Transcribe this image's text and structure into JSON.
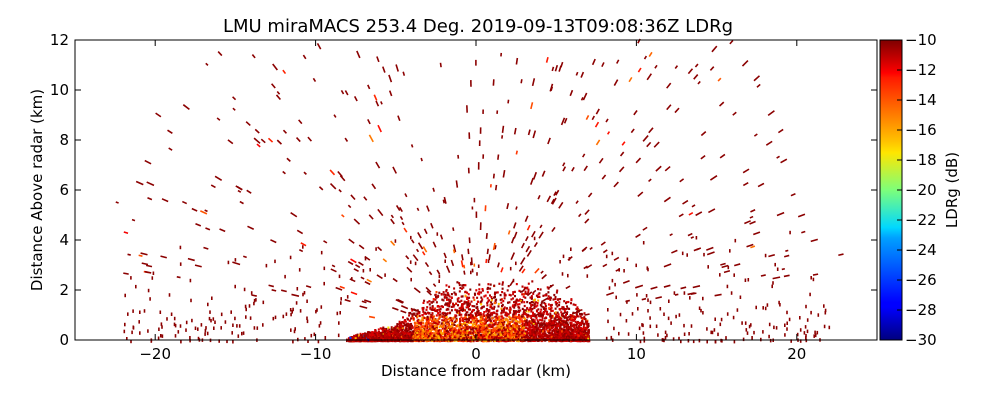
{
  "chart_data": {
    "type": "heatmap",
    "title": "LMU miraMACS 253.4 Deg. 2019-09-13T09:08:36Z  LDRg",
    "xlabel": "Distance from radar (km)",
    "ylabel": "Distance Above radar  (km)",
    "xlim": [
      -25,
      25
    ],
    "ylim": [
      0,
      12
    ],
    "x_ticks": [
      -20,
      -10,
      0,
      10,
      20
    ],
    "y_ticks": [
      0,
      2,
      4,
      6,
      8,
      10,
      12
    ],
    "x_tick_labels": [
      "−20",
      "−10",
      "0",
      "10",
      "20"
    ],
    "y_tick_labels": [
      "0",
      "2",
      "4",
      "6",
      "8",
      "10",
      "12"
    ],
    "grid": false,
    "colorbar": {
      "label": "LDRg (dB)",
      "min": -30,
      "max": -10,
      "ticks": [
        -10,
        -12,
        -14,
        -16,
        -18,
        -20,
        -22,
        -24,
        -26,
        -28,
        -30
      ],
      "tick_labels": [
        "−10",
        "−12",
        "−14",
        "−16",
        "−18",
        "−20",
        "−22",
        "−24",
        "−26",
        "−28",
        "−30"
      ],
      "colormap": "jet"
    },
    "field_description_values": {
      "dense_echo_region": {
        "x_range_km": [
          -8,
          7
        ],
        "top_km": 2.4
      },
      "sparse_noise_extent_km": {
        "x": [
          -23.5,
          23.5
        ],
        "y": [
          0,
          12
        ]
      },
      "typical_ldr_dB": -10,
      "core_ldr_dB": [
        -16,
        -13
      ]
    }
  },
  "colors": {
    "axes": "#000000",
    "background": "#ffffff",
    "dominant_speckle": "#8b0000"
  }
}
